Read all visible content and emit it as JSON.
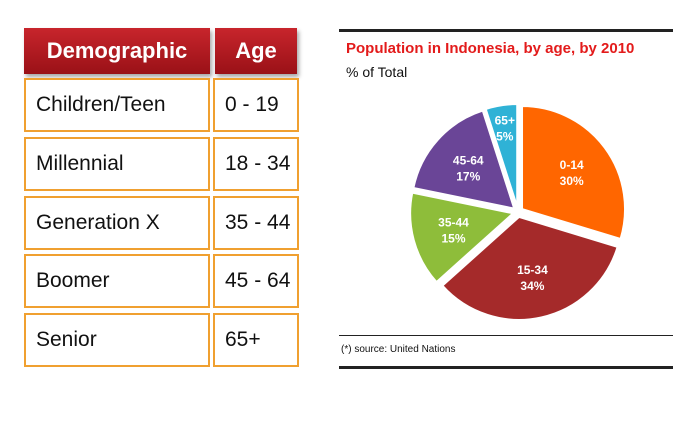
{
  "table": {
    "headers": [
      "Demographic",
      "Age"
    ],
    "rows": [
      [
        "Children/Teen",
        "0 - 19"
      ],
      [
        "Millennial",
        "18 - 34"
      ],
      [
        "Generation X",
        "35 - 44"
      ],
      [
        "Boomer",
        "45 - 64"
      ],
      [
        "Senior",
        "65+"
      ]
    ]
  },
  "chart_data": {
    "type": "pie",
    "title": "Population in Indonesia, by age, by 2010",
    "subtitle": "% of Total",
    "categories": [
      "0-14",
      "15-34",
      "35-44",
      "45-64",
      "65+"
    ],
    "values": [
      30,
      34,
      15,
      17,
      5
    ],
    "value_labels": [
      "30%",
      "34%",
      "15%",
      "17%",
      "5%"
    ],
    "colors": [
      "#ff6600",
      "#a52a2a",
      "#8ebd3a",
      "#6a4597",
      "#2fb2d6"
    ],
    "source": "(*) source: United Nations"
  }
}
